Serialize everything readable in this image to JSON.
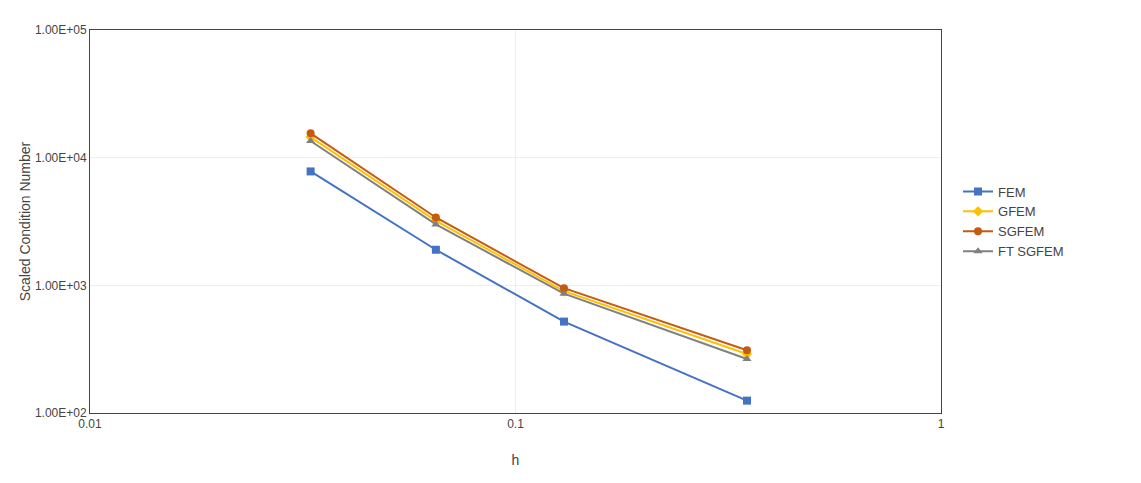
{
  "chart_data": {
    "type": "line",
    "xlabel": "h",
    "ylabel": "Scaled Condition Number",
    "x": [
      0.033,
      0.065,
      0.13,
      0.35
    ],
    "series": [
      {
        "name": "FEM",
        "color": "#4472C4",
        "marker": "square",
        "values": [
          7800,
          1900,
          520,
          125
        ]
      },
      {
        "name": "GFEM",
        "color": "#FFC000",
        "marker": "diamond",
        "values": [
          14500,
          3200,
          900,
          290
        ]
      },
      {
        "name": "SGFEM",
        "color": "#C55A11",
        "marker": "circle",
        "values": [
          15500,
          3400,
          950,
          310
        ]
      },
      {
        "name": "FT SGFEM",
        "color": "#808080",
        "marker": "triangle-up",
        "values": [
          13500,
          3000,
          860,
          265
        ]
      }
    ],
    "log": true,
    "xlim": [
      0.01,
      1
    ],
    "ylim": [
      100,
      100000
    ],
    "xticks": [
      0.01,
      0.1,
      1
    ],
    "yticks": [
      {
        "value": 100,
        "label": "1.00E+02"
      },
      {
        "value": 1000,
        "label": "1.00E+03"
      },
      {
        "value": 10000,
        "label": "1.00E+04"
      },
      {
        "value": 100000,
        "label": "1.00E+05"
      }
    ],
    "grid": true,
    "legend": "right"
  }
}
